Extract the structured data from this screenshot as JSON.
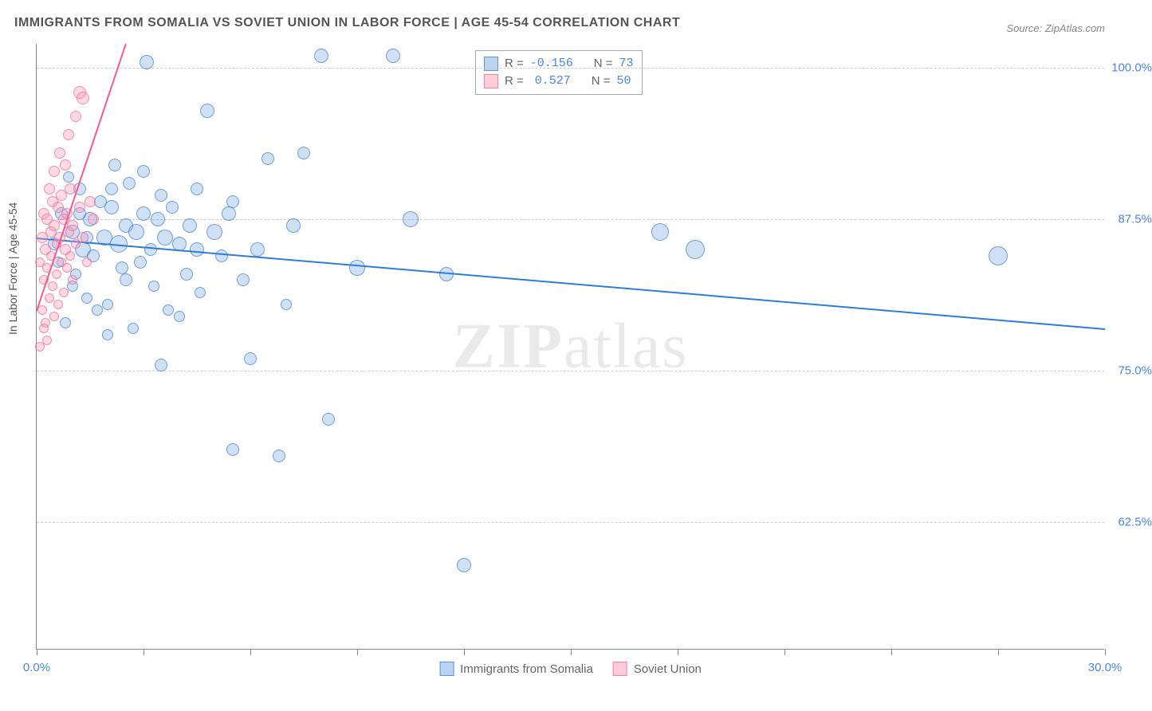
{
  "title": "IMMIGRANTS FROM SOMALIA VS SOVIET UNION IN LABOR FORCE | AGE 45-54 CORRELATION CHART",
  "source": "Source: ZipAtlas.com",
  "watermark_a": "ZIP",
  "watermark_b": "atlas",
  "ylabel": "In Labor Force | Age 45-54",
  "chart": {
    "type": "scatter",
    "xlim": [
      0.0,
      30.0
    ],
    "ylim": [
      52.0,
      102.0
    ],
    "xticks": [
      0,
      3,
      6,
      9,
      12,
      15,
      18,
      21,
      24,
      27,
      30
    ],
    "xtick_labels": {
      "0": "0.0%",
      "30": "30.0%"
    },
    "yticks": [
      62.5,
      75.0,
      87.5,
      100.0
    ],
    "ytick_labels": [
      "62.5%",
      "75.0%",
      "87.5%",
      "100.0%"
    ],
    "grid_color": "#cccccc",
    "axis_color": "#888888",
    "background": "#ffffff",
    "point_radius_min": 6,
    "point_radius_max": 13,
    "series": [
      {
        "name": "Immigrants from Somalia",
        "color_fill": "rgba(120,170,230,0.35)",
        "color_stroke": "rgba(70,130,210,0.7)",
        "R": "-0.156",
        "N": "73",
        "trend": {
          "x1": 0,
          "y1": 86.0,
          "x2": 30,
          "y2": 78.5,
          "color": "#2b7de0",
          "width": 2
        },
        "points": [
          {
            "x": 0.5,
            "y": 85.5,
            "r": 8
          },
          {
            "x": 0.6,
            "y": 84.0,
            "r": 7
          },
          {
            "x": 0.7,
            "y": 88.0,
            "r": 8
          },
          {
            "x": 0.8,
            "y": 79.0,
            "r": 7
          },
          {
            "x": 1.0,
            "y": 86.5,
            "r": 9
          },
          {
            "x": 1.1,
            "y": 83.0,
            "r": 7
          },
          {
            "x": 1.2,
            "y": 90.0,
            "r": 8
          },
          {
            "x": 1.3,
            "y": 85.0,
            "r": 10
          },
          {
            "x": 1.4,
            "y": 81.0,
            "r": 7
          },
          {
            "x": 1.5,
            "y": 87.5,
            "r": 9
          },
          {
            "x": 1.6,
            "y": 84.5,
            "r": 8
          },
          {
            "x": 1.8,
            "y": 89.0,
            "r": 8
          },
          {
            "x": 1.9,
            "y": 86.0,
            "r": 10
          },
          {
            "x": 2.0,
            "y": 80.5,
            "r": 7
          },
          {
            "x": 2.1,
            "y": 88.5,
            "r": 9
          },
          {
            "x": 2.2,
            "y": 92.0,
            "r": 8
          },
          {
            "x": 2.3,
            "y": 85.5,
            "r": 11
          },
          {
            "x": 2.4,
            "y": 83.5,
            "r": 8
          },
          {
            "x": 2.5,
            "y": 87.0,
            "r": 9
          },
          {
            "x": 2.6,
            "y": 90.5,
            "r": 8
          },
          {
            "x": 2.7,
            "y": 78.5,
            "r": 7
          },
          {
            "x": 2.8,
            "y": 86.5,
            "r": 10
          },
          {
            "x": 2.9,
            "y": 84.0,
            "r": 8
          },
          {
            "x": 3.0,
            "y": 88.0,
            "r": 9
          },
          {
            "x": 3.1,
            "y": 100.5,
            "r": 9
          },
          {
            "x": 3.2,
            "y": 85.0,
            "r": 8
          },
          {
            "x": 3.3,
            "y": 82.0,
            "r": 7
          },
          {
            "x": 3.4,
            "y": 87.5,
            "r": 9
          },
          {
            "x": 3.5,
            "y": 89.5,
            "r": 8
          },
          {
            "x": 3.6,
            "y": 86.0,
            "r": 10
          },
          {
            "x": 3.7,
            "y": 80.0,
            "r": 7
          },
          {
            "x": 3.8,
            "y": 88.5,
            "r": 8
          },
          {
            "x": 4.0,
            "y": 85.5,
            "r": 9
          },
          {
            "x": 4.2,
            "y": 83.0,
            "r": 8
          },
          {
            "x": 4.3,
            "y": 87.0,
            "r": 9
          },
          {
            "x": 4.5,
            "y": 90.0,
            "r": 8
          },
          {
            "x": 4.6,
            "y": 81.5,
            "r": 7
          },
          {
            "x": 4.8,
            "y": 96.5,
            "r": 9
          },
          {
            "x": 5.0,
            "y": 86.5,
            "r": 10
          },
          {
            "x": 5.2,
            "y": 84.5,
            "r": 8
          },
          {
            "x": 5.4,
            "y": 88.0,
            "r": 9
          },
          {
            "x": 5.5,
            "y": 68.5,
            "r": 8
          },
          {
            "x": 5.8,
            "y": 82.5,
            "r": 8
          },
          {
            "x": 6.0,
            "y": 76.0,
            "r": 8
          },
          {
            "x": 6.2,
            "y": 85.0,
            "r": 9
          },
          {
            "x": 6.5,
            "y": 92.5,
            "r": 8
          },
          {
            "x": 6.8,
            "y": 68.0,
            "r": 8
          },
          {
            "x": 7.0,
            "y": 80.5,
            "r": 7
          },
          {
            "x": 7.2,
            "y": 87.0,
            "r": 9
          },
          {
            "x": 7.5,
            "y": 93.0,
            "r": 8
          },
          {
            "x": 8.0,
            "y": 101.0,
            "r": 9
          },
          {
            "x": 8.2,
            "y": 71.0,
            "r": 8
          },
          {
            "x": 9.0,
            "y": 83.5,
            "r": 10
          },
          {
            "x": 10.0,
            "y": 101.0,
            "r": 9
          },
          {
            "x": 10.5,
            "y": 87.5,
            "r": 10
          },
          {
            "x": 11.5,
            "y": 83.0,
            "r": 9
          },
          {
            "x": 12.0,
            "y": 59.0,
            "r": 9
          },
          {
            "x": 17.5,
            "y": 86.5,
            "r": 11
          },
          {
            "x": 18.5,
            "y": 85.0,
            "r": 12
          },
          {
            "x": 27.0,
            "y": 84.5,
            "r": 12
          },
          {
            "x": 2.0,
            "y": 78.0,
            "r": 7
          },
          {
            "x": 1.0,
            "y": 82.0,
            "r": 7
          },
          {
            "x": 3.5,
            "y": 75.5,
            "r": 8
          },
          {
            "x": 4.0,
            "y": 79.5,
            "r": 7
          },
          {
            "x": 1.2,
            "y": 88.0,
            "r": 8
          },
          {
            "x": 0.9,
            "y": 91.0,
            "r": 7
          },
          {
            "x": 2.5,
            "y": 82.5,
            "r": 8
          },
          {
            "x": 3.0,
            "y": 91.5,
            "r": 8
          },
          {
            "x": 1.7,
            "y": 80.0,
            "r": 7
          },
          {
            "x": 2.1,
            "y": 90.0,
            "r": 8
          },
          {
            "x": 1.4,
            "y": 86.0,
            "r": 8
          },
          {
            "x": 4.5,
            "y": 85.0,
            "r": 9
          },
          {
            "x": 5.5,
            "y": 89.0,
            "r": 8
          }
        ]
      },
      {
        "name": "Soviet Union",
        "color_fill": "rgba(255,150,180,0.35)",
        "color_stroke": "rgba(240,110,150,0.7)",
        "R": "0.527",
        "N": "50",
        "trend": {
          "x1": 0,
          "y1": 80.0,
          "x2": 2.5,
          "y2": 102.0,
          "color": "#f85a8e",
          "width": 2
        },
        "points": [
          {
            "x": 0.1,
            "y": 84.0,
            "r": 6
          },
          {
            "x": 0.15,
            "y": 86.0,
            "r": 7
          },
          {
            "x": 0.2,
            "y": 82.5,
            "r": 6
          },
          {
            "x": 0.2,
            "y": 88.0,
            "r": 7
          },
          {
            "x": 0.25,
            "y": 79.0,
            "r": 6
          },
          {
            "x": 0.25,
            "y": 85.0,
            "r": 7
          },
          {
            "x": 0.3,
            "y": 87.5,
            "r": 7
          },
          {
            "x": 0.3,
            "y": 83.5,
            "r": 6
          },
          {
            "x": 0.35,
            "y": 90.0,
            "r": 7
          },
          {
            "x": 0.35,
            "y": 81.0,
            "r": 6
          },
          {
            "x": 0.4,
            "y": 86.5,
            "r": 7
          },
          {
            "x": 0.4,
            "y": 84.5,
            "r": 6
          },
          {
            "x": 0.45,
            "y": 89.0,
            "r": 7
          },
          {
            "x": 0.45,
            "y": 82.0,
            "r": 6
          },
          {
            "x": 0.5,
            "y": 87.0,
            "r": 7
          },
          {
            "x": 0.5,
            "y": 91.5,
            "r": 7
          },
          {
            "x": 0.55,
            "y": 85.5,
            "r": 6
          },
          {
            "x": 0.55,
            "y": 83.0,
            "r": 6
          },
          {
            "x": 0.6,
            "y": 88.5,
            "r": 7
          },
          {
            "x": 0.6,
            "y": 80.5,
            "r": 6
          },
          {
            "x": 0.65,
            "y": 86.0,
            "r": 7
          },
          {
            "x": 0.65,
            "y": 93.0,
            "r": 7
          },
          {
            "x": 0.7,
            "y": 84.0,
            "r": 6
          },
          {
            "x": 0.7,
            "y": 89.5,
            "r": 7
          },
          {
            "x": 0.75,
            "y": 87.5,
            "r": 7
          },
          {
            "x": 0.75,
            "y": 81.5,
            "r": 6
          },
          {
            "x": 0.8,
            "y": 85.0,
            "r": 7
          },
          {
            "x": 0.8,
            "y": 92.0,
            "r": 7
          },
          {
            "x": 0.85,
            "y": 88.0,
            "r": 7
          },
          {
            "x": 0.85,
            "y": 83.5,
            "r": 6
          },
          {
            "x": 0.9,
            "y": 86.5,
            "r": 7
          },
          {
            "x": 0.9,
            "y": 94.5,
            "r": 7
          },
          {
            "x": 0.95,
            "y": 84.5,
            "r": 6
          },
          {
            "x": 0.95,
            "y": 90.0,
            "r": 7
          },
          {
            "x": 1.0,
            "y": 87.0,
            "r": 7
          },
          {
            "x": 1.0,
            "y": 82.5,
            "r": 6
          },
          {
            "x": 1.1,
            "y": 96.0,
            "r": 7
          },
          {
            "x": 1.1,
            "y": 85.5,
            "r": 6
          },
          {
            "x": 1.2,
            "y": 88.5,
            "r": 7
          },
          {
            "x": 1.2,
            "y": 98.0,
            "r": 8
          },
          {
            "x": 1.3,
            "y": 86.0,
            "r": 7
          },
          {
            "x": 1.3,
            "y": 97.5,
            "r": 8
          },
          {
            "x": 1.4,
            "y": 84.0,
            "r": 6
          },
          {
            "x": 1.5,
            "y": 89.0,
            "r": 7
          },
          {
            "x": 1.6,
            "y": 87.5,
            "r": 7
          },
          {
            "x": 0.1,
            "y": 77.0,
            "r": 6
          },
          {
            "x": 0.15,
            "y": 80.0,
            "r": 6
          },
          {
            "x": 0.2,
            "y": 78.5,
            "r": 6
          },
          {
            "x": 0.3,
            "y": 77.5,
            "r": 6
          },
          {
            "x": 0.5,
            "y": 79.5,
            "r": 6
          }
        ]
      }
    ]
  },
  "legend_top": {
    "r_label": "R =",
    "n_label": "N ="
  },
  "legend_bottom": {
    "series1_label": "Immigrants from Somalia",
    "series2_label": "Soviet Union"
  }
}
